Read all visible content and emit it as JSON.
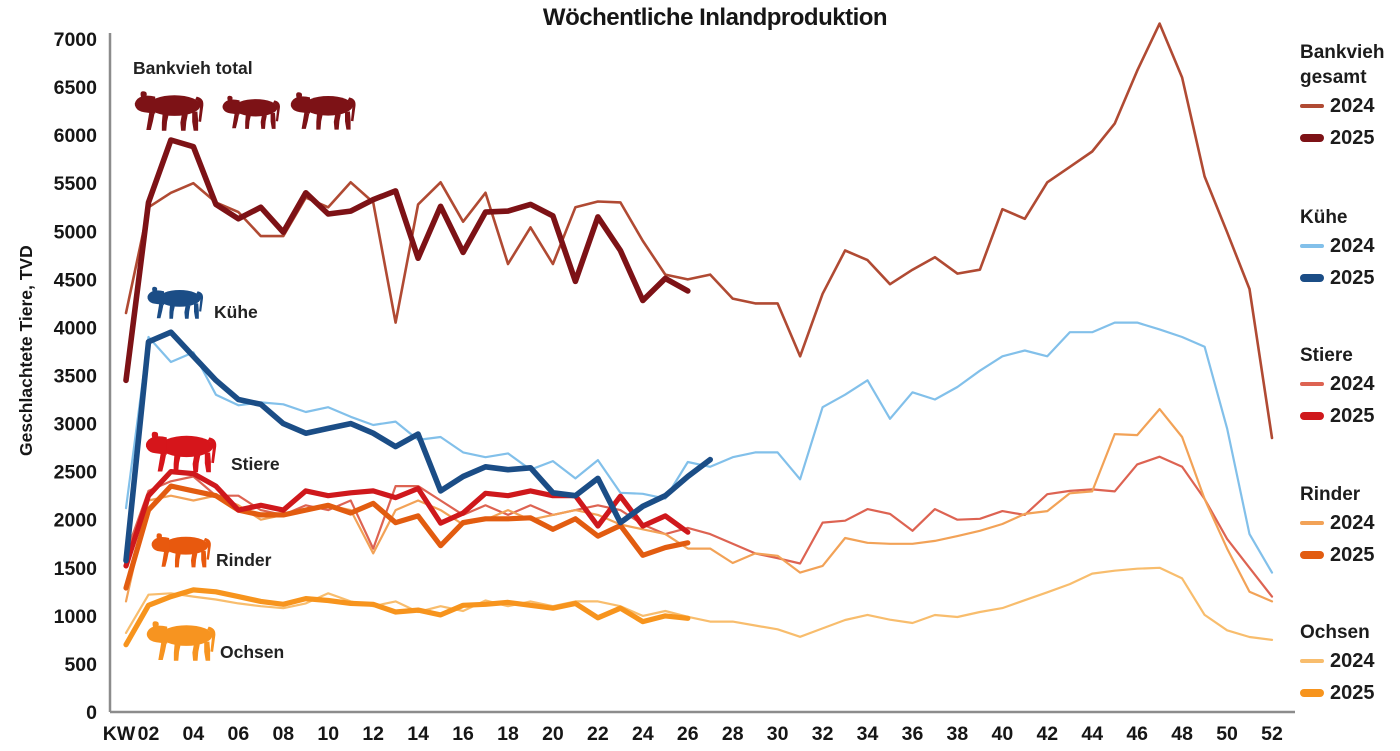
{
  "title": "Wöchentliche Inlandproduktion",
  "y_axis": {
    "label": "Geschlachtete Tiere, TVD",
    "min": 0,
    "max": 7000,
    "tick_values": [
      0,
      500,
      1000,
      1500,
      2000,
      2500,
      3000,
      3500,
      4000,
      4500,
      5000,
      5500,
      6000,
      6500,
      7000
    ]
  },
  "x_axis": {
    "corner_label": "KW",
    "min_week": 1,
    "max_week": 52,
    "tick_labels": [
      "02",
      "04",
      "06",
      "08",
      "10",
      "12",
      "14",
      "16",
      "18",
      "20",
      "22",
      "24",
      "26",
      "28",
      "30",
      "32",
      "34",
      "36",
      "38",
      "40",
      "42",
      "44",
      "46",
      "48",
      "50",
      "52"
    ]
  },
  "chart_data": {
    "type": "line",
    "x_unit": "Kalenderwoche (KW) 1-52",
    "y_unit": "Geschlachtete Tiere, TVD",
    "series": [
      {
        "id": "bankvieh-2024",
        "group": "Bankvieh gesamt",
        "year": "2024",
        "color": "#b04a33",
        "thick": false,
        "start_week": 1,
        "values": [
          4150,
          5250,
          5400,
          5500,
          5300,
          5200,
          4950,
          4950,
          5350,
          5250,
          5510,
          5300,
          4050,
          5280,
          5510,
          5100,
          5400,
          4660,
          5040,
          4660,
          5250,
          5310,
          5300,
          4900,
          4550,
          4500,
          4550,
          4300,
          4250,
          4250,
          3700,
          4350,
          4800,
          4700,
          4450,
          4600,
          4730,
          4560,
          4600,
          5230,
          5130,
          5510,
          5670,
          5830,
          6120,
          6670,
          7160,
          6600,
          5570,
          4990,
          4400,
          2850
        ]
      },
      {
        "id": "kuehe-2024",
        "group": "Kühe",
        "year": "2024",
        "color": "#82c0ea",
        "thick": false,
        "start_week": 1,
        "values": [
          2120,
          3900,
          3640,
          3740,
          3300,
          3190,
          3220,
          3200,
          3120,
          3170,
          3070,
          2985,
          3020,
          2830,
          2860,
          2700,
          2650,
          2690,
          2520,
          2610,
          2430,
          2620,
          2280,
          2270,
          2220,
          2600,
          2550,
          2650,
          2700,
          2700,
          2420,
          3170,
          3300,
          3450,
          3050,
          3325,
          3250,
          3380,
          3550,
          3700,
          3760,
          3700,
          3950,
          3950,
          4050,
          4050,
          3980,
          3900,
          3800,
          2950,
          1850,
          1450
        ]
      },
      {
        "id": "stiere-2024",
        "group": "Stiere",
        "year": "2024",
        "color": "#dd6352",
        "thick": false,
        "start_week": 1,
        "values": [
          1650,
          2300,
          2400,
          2450,
          2250,
          2250,
          2100,
          2050,
          2150,
          2100,
          2200,
          1700,
          2350,
          2350,
          2200,
          2050,
          2150,
          2050,
          2150,
          2050,
          2100,
          2150,
          2100,
          1950,
          1850,
          1915,
          1850,
          1750,
          1650,
          1600,
          1545,
          1970,
          1990,
          2110,
          2060,
          1885,
          2110,
          2000,
          2010,
          2090,
          2050,
          2265,
          2300,
          2315,
          2295,
          2575,
          2655,
          2550,
          2215,
          1800,
          1500,
          1200
        ]
      },
      {
        "id": "rinder-2024",
        "group": "Rinder",
        "year": "2024",
        "color": "#f2a257",
        "thick": false,
        "start_week": 1,
        "values": [
          1150,
          2200,
          2250,
          2200,
          2250,
          2150,
          2000,
          2050,
          2100,
          2150,
          2100,
          1650,
          2100,
          2200,
          2100,
          1950,
          2000,
          2100,
          2000,
          2050,
          2100,
          2050,
          1950,
          1900,
          1850,
          1700,
          1700,
          1550,
          1650,
          1625,
          1450,
          1520,
          1810,
          1760,
          1750,
          1750,
          1780,
          1830,
          1885,
          1955,
          2060,
          2090,
          2275,
          2295,
          2890,
          2880,
          3150,
          2860,
          2215,
          1700,
          1250,
          1150
        ]
      },
      {
        "id": "ochsen-2024",
        "group": "Ochsen",
        "year": "2024",
        "color": "#f8bd6d",
        "thick": false,
        "start_week": 1,
        "values": [
          823,
          1220,
          1235,
          1200,
          1170,
          1130,
          1100,
          1080,
          1130,
          1235,
          1150,
          1100,
          1150,
          1040,
          1100,
          1050,
          1160,
          1100,
          1150,
          1100,
          1150,
          1150,
          1100,
          1000,
          1050,
          990,
          940,
          940,
          900,
          860,
          782,
          870,
          957,
          1010,
          960,
          926,
          1009,
          988,
          1040,
          1081,
          1163,
          1245,
          1330,
          1440,
          1470,
          1490,
          1500,
          1390,
          1010,
          850,
          780,
          750
        ]
      },
      {
        "id": "ochsen-2025",
        "group": "Ochsen",
        "year": "2025",
        "color": "#f7941d",
        "thick": true,
        "start_week": 1,
        "values": [
          700,
          1110,
          1200,
          1270,
          1250,
          1200,
          1150,
          1120,
          1180,
          1160,
          1130,
          1120,
          1040,
          1060,
          1010,
          1110,
          1120,
          1140,
          1110,
          1080,
          1130,
          980,
          1080,
          940,
          1000,
          975
        ]
      },
      {
        "id": "rinder-2025",
        "group": "Rinder",
        "year": "2025",
        "color": "#e25c10",
        "thick": true,
        "start_week": 1,
        "values": [
          1290,
          2100,
          2350,
          2300,
          2250,
          2100,
          2050,
          2050,
          2100,
          2150,
          2070,
          2170,
          1970,
          2040,
          1730,
          1970,
          2010,
          2010,
          2020,
          1900,
          2010,
          1830,
          1940,
          1630,
          1710,
          1760
        ]
      },
      {
        "id": "stiere-2025",
        "group": "Stiere",
        "year": "2025",
        "color": "#cf181c",
        "thick": true,
        "start_week": 1,
        "values": [
          1520,
          2250,
          2500,
          2480,
          2350,
          2100,
          2150,
          2100,
          2300,
          2250,
          2280,
          2300,
          2230,
          2325,
          1965,
          2070,
          2275,
          2250,
          2300,
          2250,
          2250,
          1935,
          2245,
          1935,
          2040,
          1870
        ]
      },
      {
        "id": "kuehe-2025",
        "group": "Kühe",
        "year": "2025",
        "color": "#1b4d86",
        "thick": true,
        "start_week": 1,
        "values": [
          1575,
          3850,
          3950,
          3700,
          3450,
          3250,
          3200,
          3000,
          2900,
          2950,
          3000,
          2900,
          2760,
          2890,
          2300,
          2450,
          2550,
          2520,
          2540,
          2280,
          2250,
          2430,
          1970,
          2140,
          2250,
          2450,
          2625
        ]
      },
      {
        "id": "bankvieh-2025",
        "group": "Bankvieh gesamt",
        "year": "2025",
        "color": "#7d1216",
        "thick": true,
        "start_week": 1,
        "values": [
          3450,
          5300,
          5950,
          5880,
          5280,
          5130,
          5250,
          4990,
          5400,
          5180,
          5210,
          5330,
          5420,
          4720,
          5260,
          4780,
          5200,
          5210,
          5280,
          5160,
          4480,
          5150,
          4800,
          4280,
          4510,
          4380
        ]
      }
    ]
  },
  "annotations": [
    {
      "id": "bankvieh",
      "label": "Bankvieh total",
      "color": "#7d1216",
      "cow_count": 3
    },
    {
      "id": "kuehe",
      "label": "Kühe",
      "color": "#1b4d86",
      "cow_count": 1
    },
    {
      "id": "stiere",
      "label": "Stiere",
      "color": "#d6151b",
      "cow_count": 1
    },
    {
      "id": "rinder",
      "label": "Rinder",
      "color": "#e8590e",
      "cow_count": 1
    },
    {
      "id": "ochsen",
      "label": "Ochsen",
      "color": "#f79420",
      "cow_count": 1
    }
  ],
  "legend": {
    "groups": [
      {
        "id": "bankvieh",
        "name": "Bankvieh gesamt",
        "entries": [
          {
            "year": "2024",
            "color": "#b04a33",
            "thick": false
          },
          {
            "year": "2025",
            "color": "#7d1216",
            "thick": true
          }
        ]
      },
      {
        "id": "kuehe",
        "name": "Kühe",
        "entries": [
          {
            "year": "2024",
            "color": "#82c0ea",
            "thick": false
          },
          {
            "year": "2025",
            "color": "#1b4d86",
            "thick": true
          }
        ]
      },
      {
        "id": "stiere",
        "name": "Stiere",
        "entries": [
          {
            "year": "2024",
            "color": "#dd6352",
            "thick": false
          },
          {
            "year": "2025",
            "color": "#cf181c",
            "thick": true
          }
        ]
      },
      {
        "id": "rinder",
        "name": "Rinder",
        "entries": [
          {
            "year": "2024",
            "color": "#f2a257",
            "thick": false
          },
          {
            "year": "2025",
            "color": "#e25c10",
            "thick": true
          }
        ]
      },
      {
        "id": "ochsen",
        "name": "Ochsen",
        "entries": [
          {
            "year": "2024",
            "color": "#f8bd6d",
            "thick": false
          },
          {
            "year": "2025",
            "color": "#f7941d",
            "thick": true
          }
        ]
      }
    ]
  }
}
